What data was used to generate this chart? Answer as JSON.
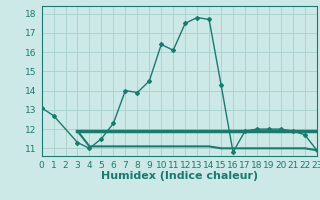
{
  "line1_x": [
    0,
    1,
    3,
    4,
    5,
    6,
    7,
    8,
    9,
    10,
    11,
    12,
    13,
    14,
    15,
    16,
    17,
    18,
    19,
    20,
    21,
    22,
    23
  ],
  "line1_y": [
    13.1,
    12.7,
    11.3,
    11.0,
    11.5,
    12.3,
    14.0,
    13.9,
    14.5,
    16.4,
    16.1,
    17.5,
    17.8,
    17.7,
    14.3,
    10.8,
    11.9,
    12.0,
    12.0,
    12.0,
    11.9,
    11.7,
    10.9
  ],
  "line2_x": [
    3,
    4,
    5,
    6,
    7,
    8,
    9,
    10,
    11,
    12,
    13,
    14,
    15,
    16,
    17,
    18,
    19,
    20,
    21,
    22,
    23
  ],
  "line2_y": [
    11.9,
    11.1,
    11.1,
    11.1,
    11.1,
    11.1,
    11.1,
    11.1,
    11.1,
    11.1,
    11.1,
    11.1,
    11.0,
    11.0,
    11.0,
    11.0,
    11.0,
    11.0,
    11.0,
    11.0,
    10.9
  ],
  "line3_x": [
    3,
    4,
    5,
    6,
    7,
    8,
    9,
    10,
    11,
    12,
    13,
    14,
    15,
    16,
    17,
    18,
    19,
    20,
    21,
    22,
    23
  ],
  "line3_y": [
    11.9,
    11.9,
    11.9,
    11.9,
    11.9,
    11.9,
    11.9,
    11.9,
    11.9,
    11.9,
    11.9,
    11.9,
    11.9,
    11.9,
    11.9,
    11.9,
    11.9,
    11.9,
    11.9,
    11.9,
    11.9
  ],
  "line_color": "#1a7a6e",
  "bg_color": "#cce9e7",
  "grid_color": "#aad4d1",
  "xlabel": "Humidex (Indice chaleur)",
  "xlim": [
    0,
    23
  ],
  "ylim": [
    10.6,
    18.4
  ],
  "yticks": [
    11,
    12,
    13,
    14,
    15,
    16,
    17,
    18
  ],
  "xticks": [
    0,
    1,
    2,
    3,
    4,
    5,
    6,
    7,
    8,
    9,
    10,
    11,
    12,
    13,
    14,
    15,
    16,
    17,
    18,
    19,
    20,
    21,
    22,
    23
  ],
  "xlabel_fontsize": 8,
  "tick_fontsize": 6.5
}
